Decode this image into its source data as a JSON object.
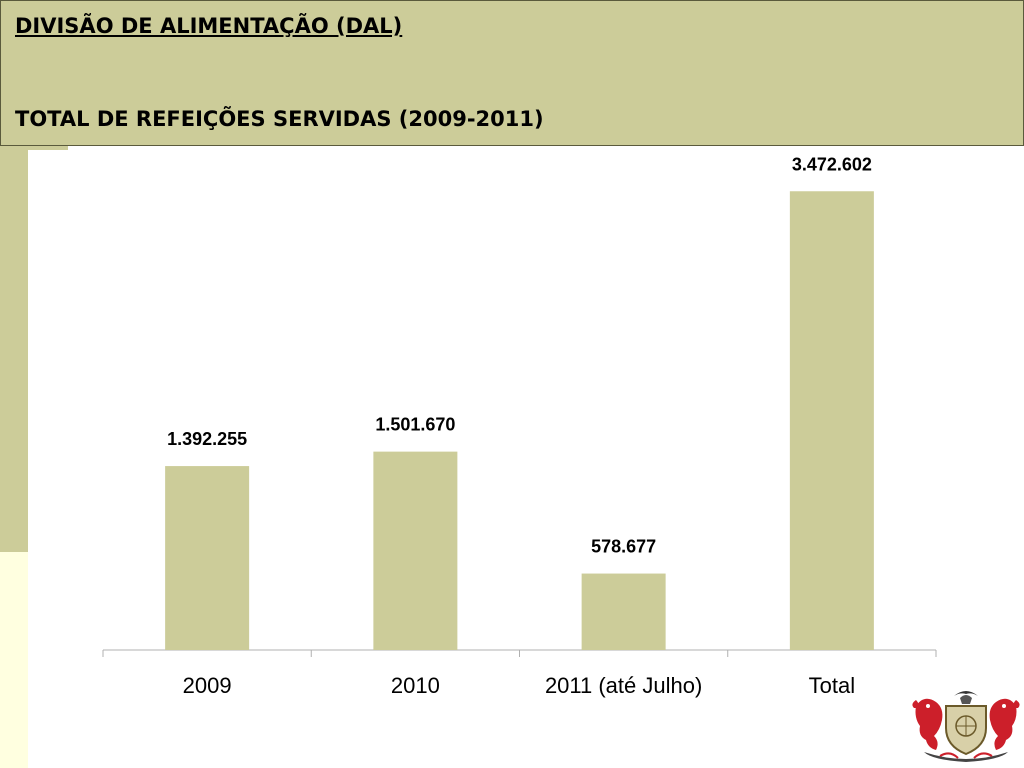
{
  "header": {
    "line1": "DIVISÃO DE ALIMENTAÇÃO (DAL)",
    "line2": "TOTAL DE REFEIÇÕES SERVIDAS (2009-2011)"
  },
  "colors": {
    "header_bg": "#cccc99",
    "bar": "#cccc99",
    "sidebar_light": "#ffffe0"
  },
  "chart_data": {
    "type": "bar",
    "title": "TOTAL DE REFEIÇÕES SERVIDAS (2009-2011)",
    "categories": [
      "2009",
      "2010",
      "2011 (até Julho)",
      "Total"
    ],
    "values": [
      1392255,
      1501670,
      578677,
      3472602
    ],
    "value_labels": [
      "1.392.255",
      "1.501.670",
      "578.677",
      "3.472.602"
    ],
    "xlabel": "",
    "ylabel": "",
    "ylim": [
      0,
      3800000
    ],
    "grid": false,
    "legend": "none"
  },
  "logo": {
    "icon": "heraldic-crest-icon"
  }
}
